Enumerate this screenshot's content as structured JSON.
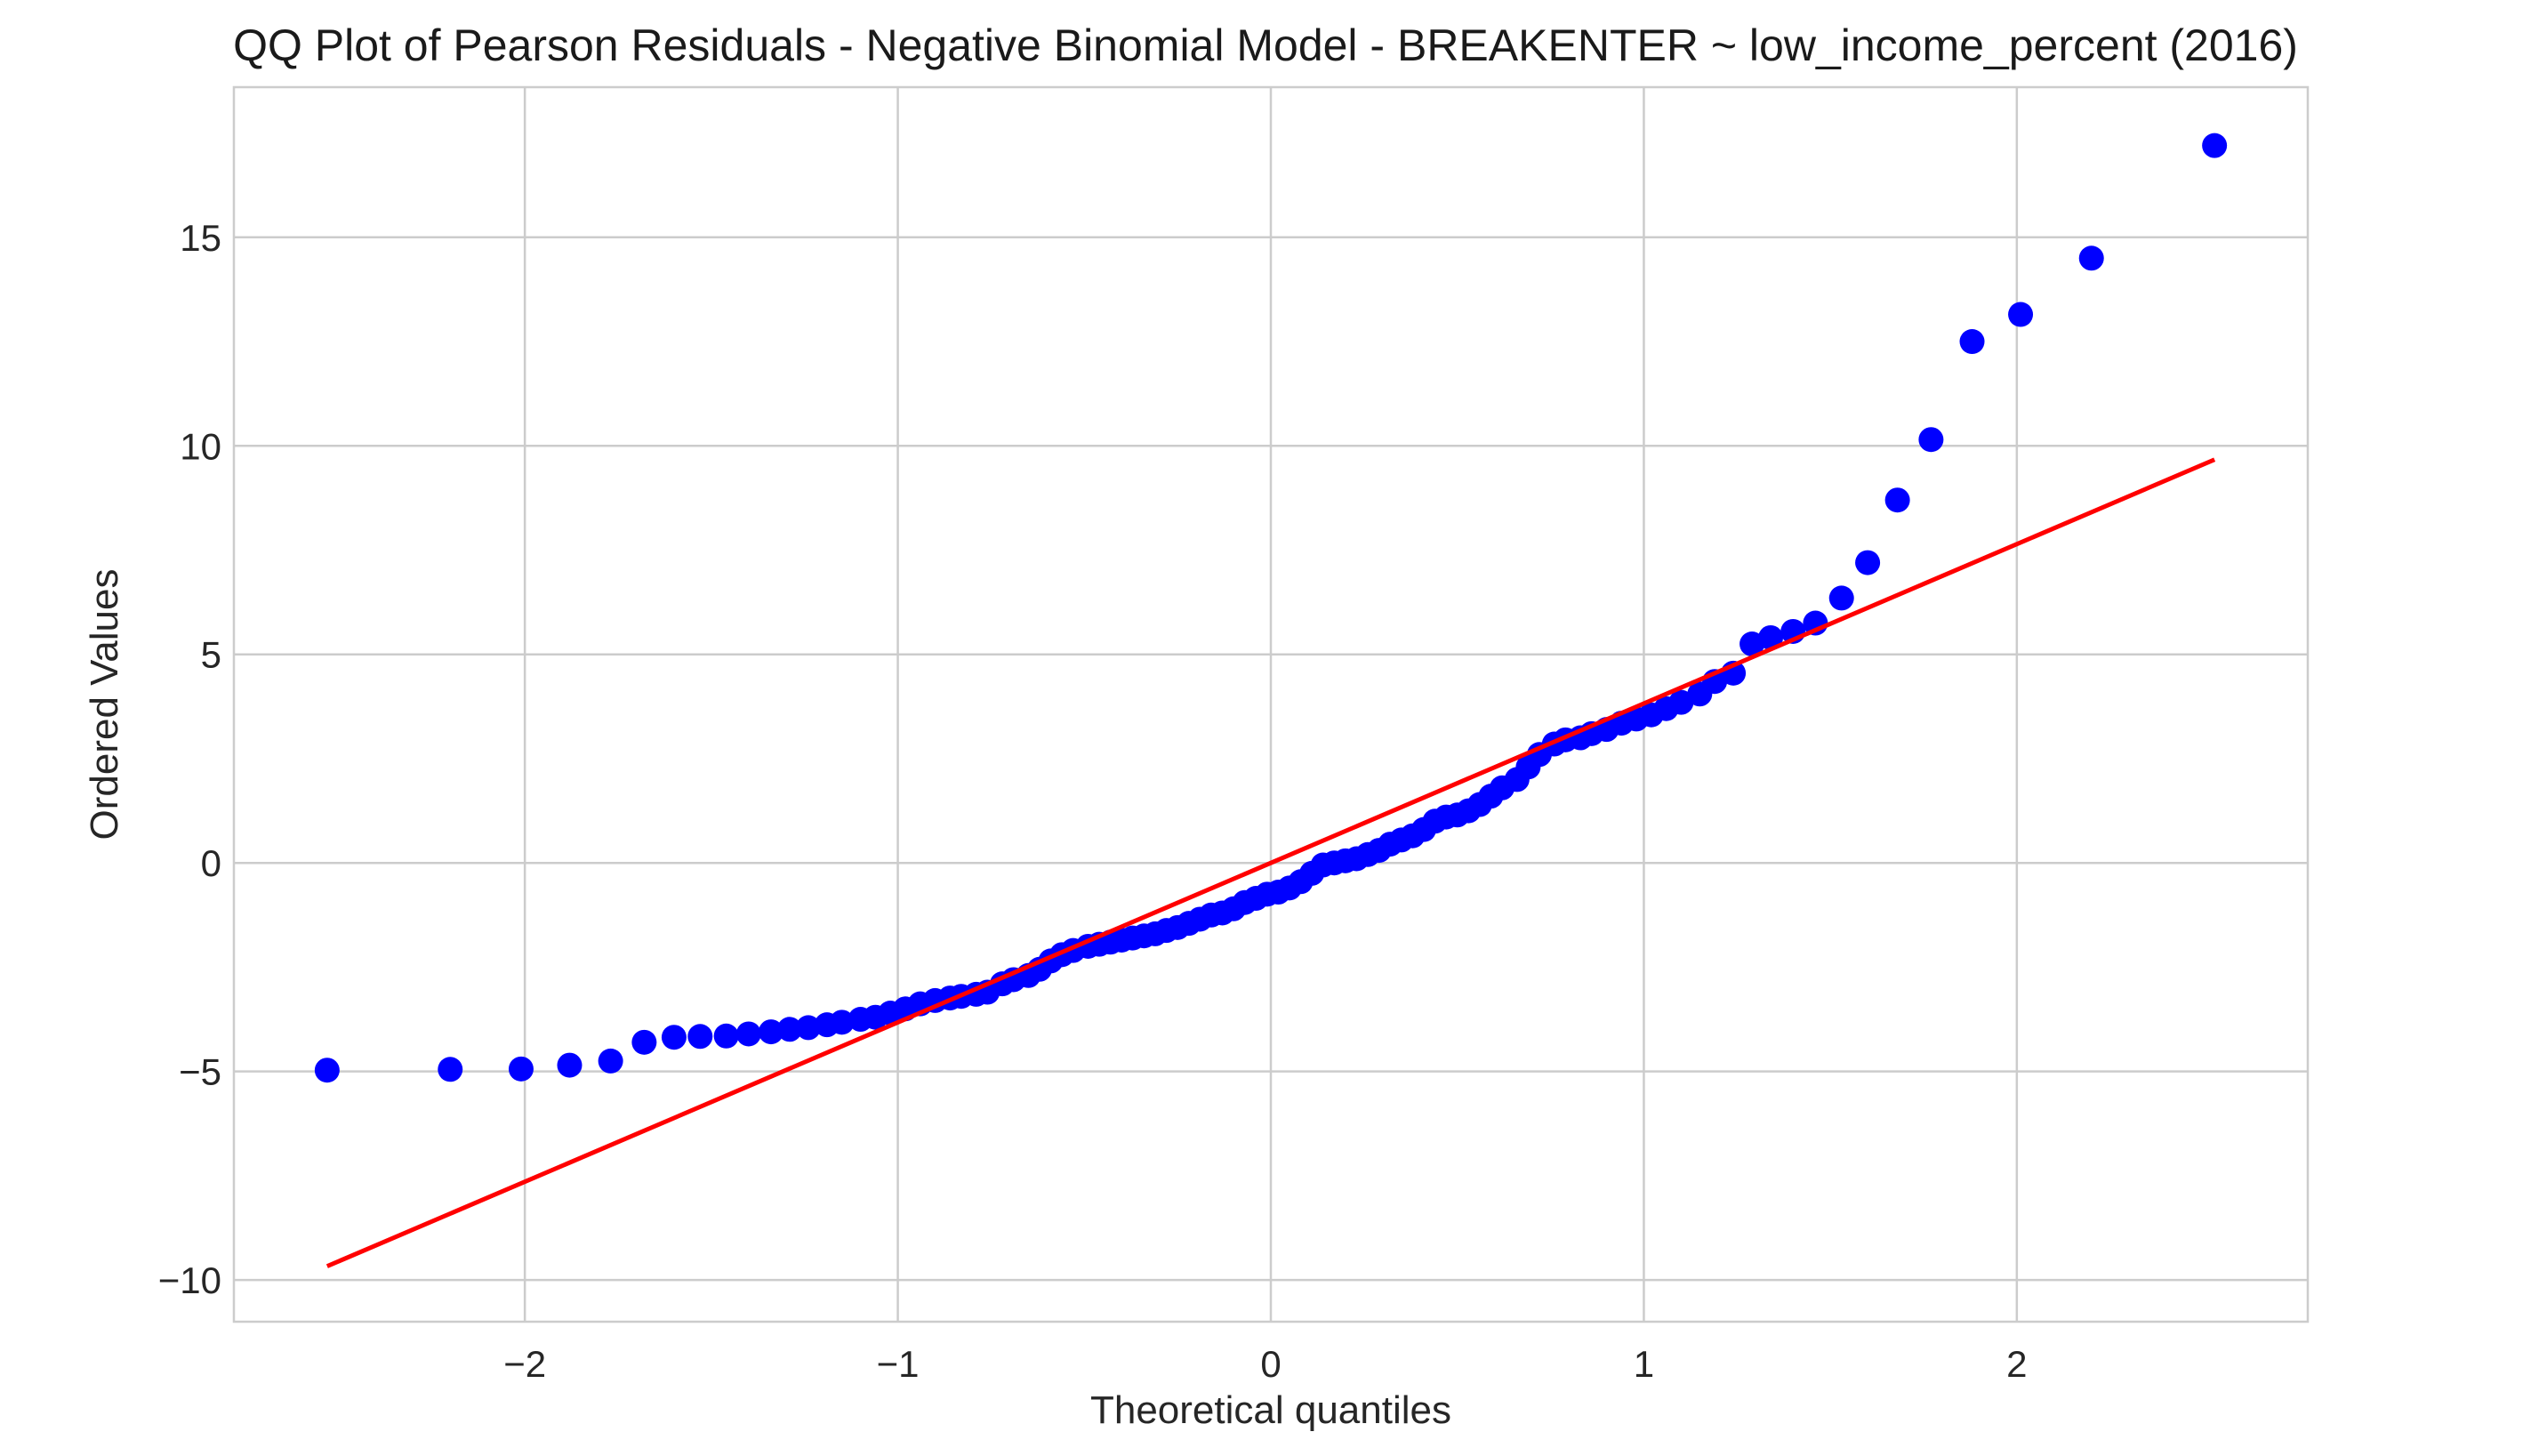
{
  "chart_data": {
    "type": "scatter",
    "title": "QQ Plot of Pearson Residuals - Negative Binomial Model - BREAKENTER ~ low_income_percent (2016)",
    "xlabel": "Theoretical quantiles",
    "ylabel": "Ordered Values",
    "xlim": [
      -2.78,
      2.78
    ],
    "ylim": [
      -11.0,
      18.6
    ],
    "xticks": [
      -2,
      -1,
      0,
      1,
      2
    ],
    "yticks": [
      -10,
      -5,
      0,
      5,
      10,
      15
    ],
    "xtick_labels": [
      "−2",
      "−1",
      "0",
      "1",
      "2"
    ],
    "ytick_labels": [
      "−10",
      "−5",
      "0",
      "5",
      "10",
      "15"
    ],
    "grid": true,
    "legend": "none",
    "colors": {
      "points": "#0000ff",
      "fit_line": "#ff0000",
      "grid": "#cccccc",
      "frame": "#cccccc"
    },
    "fit_line": {
      "x": [
        -2.53,
        2.53
      ],
      "y": [
        -9.67,
        9.67
      ]
    },
    "series": [
      {
        "x": [
          -2.53,
          -2.2,
          -2.01,
          -1.88,
          -1.77,
          -1.68,
          -1.6,
          -1.53,
          -1.46,
          -1.4,
          -1.34,
          -1.29,
          -1.24,
          -1.19,
          -1.15,
          -1.1,
          -1.06,
          -1.02,
          -0.98,
          -0.94,
          -0.9,
          -0.86,
          -0.83,
          -0.79,
          -0.76,
          -0.72,
          -0.69,
          -0.65,
          -0.62,
          -0.59,
          -0.56,
          -0.53,
          -0.49,
          -0.46,
          -0.43,
          -0.4,
          -0.37,
          -0.34,
          -0.31,
          -0.28,
          -0.25,
          -0.22,
          -0.19,
          -0.16,
          -0.13,
          -0.1,
          -0.07,
          -0.04,
          -0.01,
          0.02,
          0.05,
          0.08,
          0.11,
          0.14,
          0.17,
          0.2,
          0.23,
          0.26,
          0.29,
          0.32,
          0.35,
          0.38,
          0.41,
          0.44,
          0.47,
          0.5,
          0.53,
          0.56,
          0.59,
          0.62,
          0.66,
          0.69,
          0.72,
          0.76,
          0.79,
          0.83,
          0.86,
          0.9,
          0.94,
          0.98,
          1.02,
          1.06,
          1.1,
          1.15,
          1.19,
          1.24,
          1.29,
          1.34,
          1.4,
          1.46,
          1.53,
          1.6,
          1.68,
          1.77,
          1.88,
          2.01,
          2.2,
          2.53
        ],
        "y": [
          -4.97,
          -4.95,
          -4.94,
          -4.85,
          -4.75,
          -4.3,
          -4.18,
          -4.16,
          -4.15,
          -4.1,
          -4.05,
          -3.99,
          -3.95,
          -3.88,
          -3.82,
          -3.75,
          -3.7,
          -3.6,
          -3.5,
          -3.38,
          -3.3,
          -3.24,
          -3.2,
          -3.15,
          -3.1,
          -2.9,
          -2.8,
          -2.7,
          -2.55,
          -2.35,
          -2.2,
          -2.1,
          -2.0,
          -1.95,
          -1.9,
          -1.85,
          -1.8,
          -1.75,
          -1.7,
          -1.62,
          -1.55,
          -1.45,
          -1.35,
          -1.25,
          -1.2,
          -1.1,
          -0.95,
          -0.85,
          -0.75,
          -0.7,
          -0.6,
          -0.45,
          -0.25,
          -0.05,
          0.0,
          0.05,
          0.1,
          0.2,
          0.3,
          0.45,
          0.55,
          0.65,
          0.8,
          1.0,
          1.1,
          1.15,
          1.25,
          1.4,
          1.6,
          1.8,
          2.0,
          2.3,
          2.6,
          2.85,
          2.95,
          3.0,
          3.1,
          3.2,
          3.35,
          3.45,
          3.55,
          3.7,
          3.85,
          4.05,
          4.35,
          4.55,
          5.25,
          5.4,
          5.55,
          5.75,
          6.35,
          7.2,
          8.7,
          10.15,
          12.5,
          13.15,
          14.5,
          17.2
        ]
      }
    ]
  }
}
